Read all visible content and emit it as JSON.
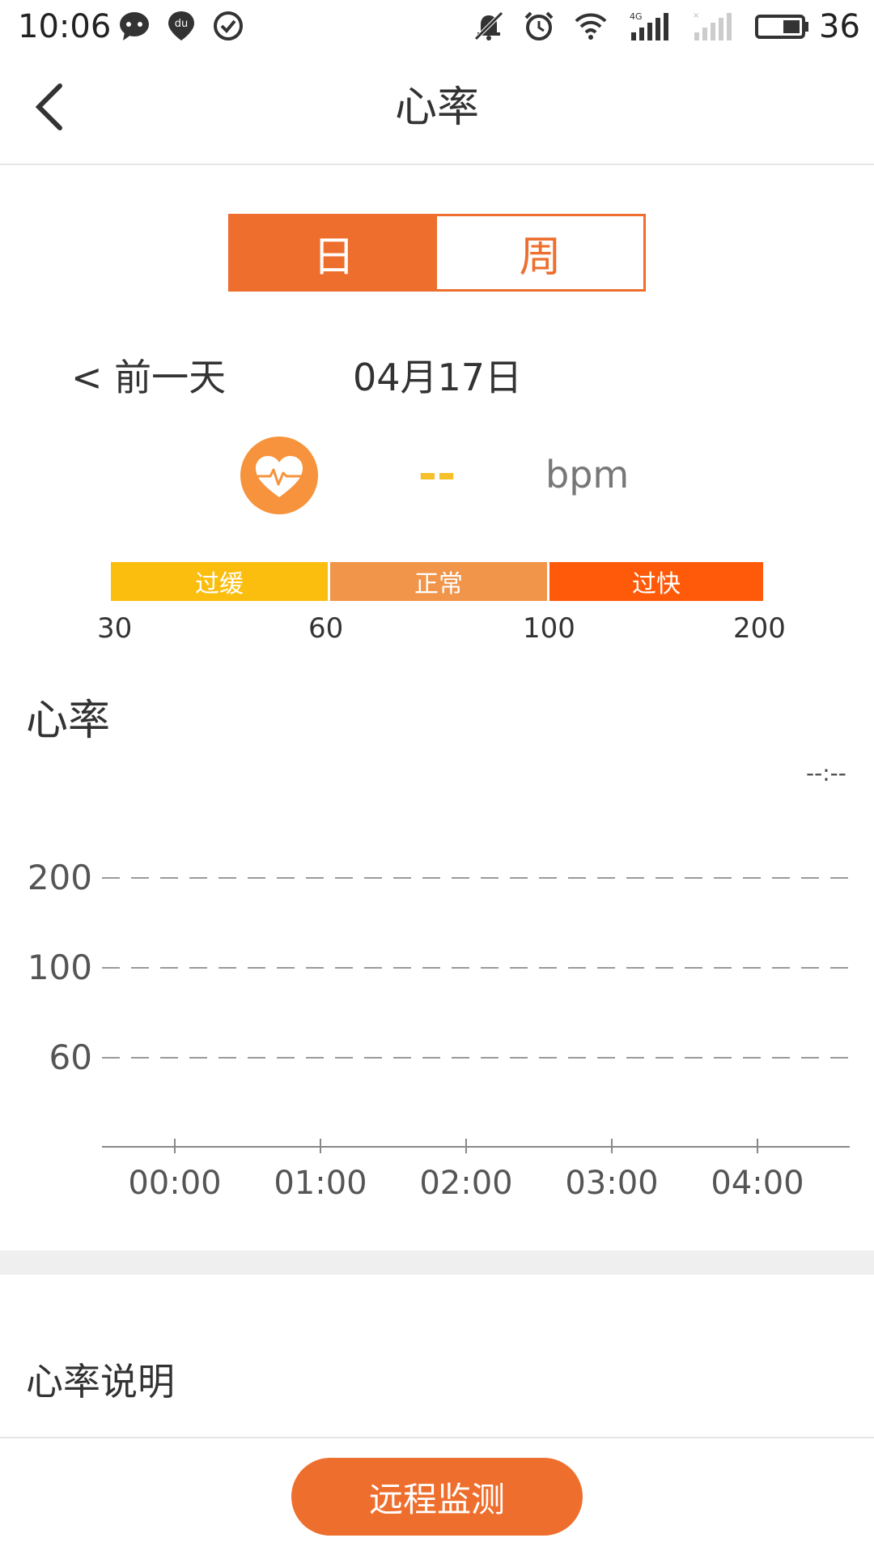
{
  "status_bar": {
    "time": "10:06",
    "battery_level": "36",
    "left_icons": [
      "chat-bubble-icon",
      "du-location-icon",
      "check-circle-icon"
    ],
    "right_icons": [
      "mute-bell-icon",
      "alarm-icon",
      "wifi-icon",
      "signal-4g-icon",
      "signal-empty-icon",
      "battery-icon"
    ]
  },
  "header": {
    "title": "心率",
    "back_icon": "back-arrow-icon"
  },
  "segment": {
    "day_label": "日",
    "week_label": "周",
    "selected": "day"
  },
  "date_nav": {
    "prev_label": "< 前一天",
    "current_date": "04月17日"
  },
  "reading": {
    "value": "--",
    "unit": "bpm",
    "icon": "heart-pulse-icon"
  },
  "range_bar": {
    "segments": [
      {
        "label": "过缓",
        "color": "#fbbe0f"
      },
      {
        "label": "正常",
        "color": "#f0954a"
      },
      {
        "label": "过快",
        "color": "#ff5a09"
      }
    ],
    "ticks": [
      "30",
      "60",
      "100",
      "200"
    ]
  },
  "chart": {
    "title": "心率",
    "time_readout": "--:--"
  },
  "chart_data": {
    "type": "line",
    "categories": [
      "00:00",
      "01:00",
      "02:00",
      "03:00",
      "04:00"
    ],
    "reference_lines": [
      200,
      100,
      60
    ],
    "series": [],
    "grid": "dashed-horizontal"
  },
  "info": {
    "title": "心率说明"
  },
  "footer": {
    "button_label": "远程监测"
  },
  "colors": {
    "accent": "#ee6e2d",
    "value": "#f6c02b"
  }
}
